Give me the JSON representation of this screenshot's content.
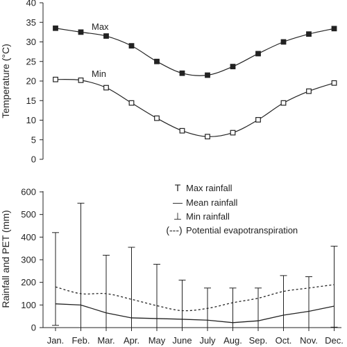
{
  "chart_data": [
    {
      "type": "line",
      "ylabel": "Temperature (°C)",
      "ylim": [
        0,
        40
      ],
      "yticks": [
        "0",
        "5",
        "10",
        "15",
        "20",
        "25",
        "30",
        "35",
        "40"
      ],
      "categories": [
        "Jan.",
        "Feb.",
        "Mar.",
        "Apr.",
        "May",
        "June",
        "July",
        "Aug.",
        "Sep.",
        "Oct.",
        "Nov.",
        "Dec."
      ],
      "series": [
        {
          "name": "Max",
          "marker": "filled-square",
          "values": [
            33.5,
            32.5,
            31.5,
            29,
            25,
            22,
            21.5,
            23.7,
            27,
            30,
            32,
            33.4
          ]
        },
        {
          "name": "Min",
          "marker": "open-square",
          "values": [
            20.4,
            20.2,
            18.3,
            14.4,
            10.5,
            7.3,
            5.8,
            6.8,
            10.1,
            14.4,
            17.4,
            19.5
          ]
        }
      ]
    },
    {
      "type": "line",
      "ylabel": "Rainfall and PET (mm)",
      "ylim": [
        0,
        600
      ],
      "yticks": [
        "0",
        "100",
        "200",
        "300",
        "400",
        "500",
        "600"
      ],
      "categories": [
        "Jan.",
        "Feb.",
        "Mar.",
        "Apr.",
        "May",
        "June",
        "July",
        "Aug.",
        "Sep.",
        "Oct.",
        "Nov.",
        "Dec."
      ],
      "legend": [
        {
          "symbol": "T",
          "label": "Max rainfall"
        },
        {
          "symbol": "—",
          "label": "Mean rainfall"
        },
        {
          "symbol": "⊥",
          "label": "Min rainfall"
        },
        {
          "symbol": "(---)",
          "label": "Potential evapotranspiration"
        }
      ],
      "series": [
        {
          "name": "Max rainfall",
          "values": [
            420,
            550,
            320,
            355,
            280,
            210,
            175,
            175,
            175,
            230,
            225,
            360
          ]
        },
        {
          "name": "Mean rainfall",
          "values": [
            105,
            100,
            65,
            43,
            40,
            37,
            33,
            22,
            30,
            55,
            72,
            95
          ]
        },
        {
          "name": "Min rainfall",
          "values": [
            10,
            0,
            0,
            0,
            0,
            0,
            0,
            0,
            0,
            0,
            0,
            2
          ]
        },
        {
          "name": "Potential evapotranspiration",
          "values": [
            180,
            150,
            150,
            125,
            97,
            75,
            85,
            110,
            130,
            160,
            175,
            190
          ]
        }
      ]
    }
  ]
}
